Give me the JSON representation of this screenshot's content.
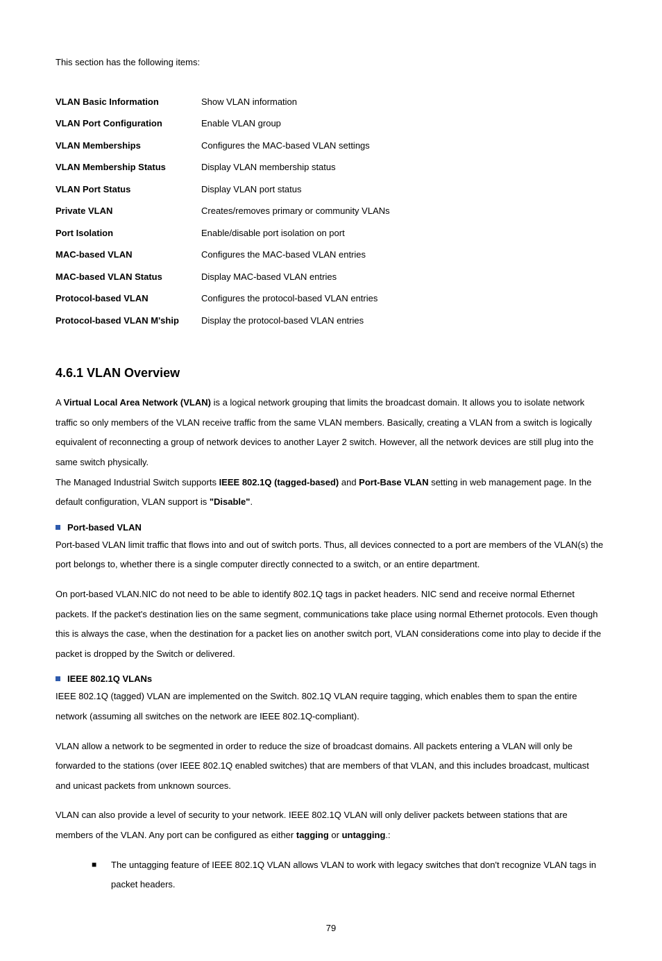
{
  "intro_line": "This section has the following items:",
  "toc": [
    {
      "label": "VLAN Basic Information",
      "desc": "Show VLAN information"
    },
    {
      "label": "VLAN Port Configuration",
      "desc": "Enable VLAN group"
    },
    {
      "label": "VLAN Memberships",
      "desc": "Configures the MAC-based VLAN settings"
    },
    {
      "label": "VLAN Membership Status",
      "desc": "Display VLAN membership status"
    },
    {
      "label": "VLAN Port Status",
      "desc": "Display VLAN port status"
    },
    {
      "label": "Private VLAN",
      "desc": "Creates/removes primary or community VLANs"
    },
    {
      "label": "Port Isolation",
      "desc": "Enable/disable port isolation on port"
    },
    {
      "label": "MAC-based VLAN",
      "desc": "Configures the MAC-based VLAN entries"
    },
    {
      "label": "MAC-based VLAN Status",
      "desc": "Display MAC-based VLAN entries"
    },
    {
      "label": "Protocol-based VLAN",
      "desc": "Configures the protocol-based VLAN entries"
    },
    {
      "label": "Protocol-based VLAN M'ship",
      "desc": "Display the protocol-based VLAN entries"
    }
  ],
  "section": {
    "title": "4.6.1 VLAN Overview",
    "para1_prefix": "A ",
    "para1_bold_vlan": "Virtual Local Area Network (VLAN)",
    "para1_mid": " is a logical network grouping that limits the broadcast domain. It allows you to isolate network traffic so only members of the VLAN receive traffic from the same VLAN members. Basically, creating a VLAN from a switch is logically equivalent of reconnecting a group of network devices to another Layer 2 switch. However, all the network devices are still plug into the same switch physically.",
    "para2_pre": "The Managed Industrial Switch supports ",
    "para2_bold1": "IEEE 802.1Q (tagged-based)",
    "para2_mid1": " and ",
    "para2_bold2": "Port-Base VLAN",
    "para2_mid2": " setting in web management page. In the default configuration, VLAN support is ",
    "para2_bold3": "\"Disable\"",
    "para2_end": ".",
    "sub1_title": "Port-based VLAN",
    "sub1_para1": "Port-based VLAN limit traffic that flows into and out of switch ports. Thus, all devices connected to a port are members of the VLAN(s) the port belongs to, whether there is a single computer directly connected to a switch, or an entire department.",
    "sub1_para2": "On port-based VLAN.NIC do not need to be able to identify 802.1Q tags in packet headers. NIC send and receive normal Ethernet packets. If the packet's destination lies on the same segment, communications take place using normal Ethernet protocols. Even though this is always the case, when the destination for a packet lies on another switch port, VLAN considerations come into play to decide if the packet is dropped by the Switch or delivered.",
    "sub2_title": "IEEE 802.1Q VLANs",
    "sub2_para1": "IEEE 802.1Q (tagged) VLAN are implemented on the Switch. 802.1Q VLAN require tagging, which enables them to span the entire network (assuming all switches on the network are IEEE 802.1Q-compliant).",
    "sub2_para2": "VLAN allow a network to be segmented in order to reduce the size of broadcast domains. All packets entering a VLAN will only be forwarded to the stations (over IEEE 802.1Q enabled switches) that are members of that VLAN, and this includes broadcast, multicast and unicast packets from unknown sources.",
    "sub2_para3_pre": "VLAN can also provide a level of security to your network. IEEE 802.1Q VLAN will only deliver packets between stations that are members of the VLAN. Any port can be configured as either ",
    "sub2_para3_b1": "tagging",
    "sub2_para3_mid": " or ",
    "sub2_para3_b2": "untagging",
    "sub2_para3_end": ".:",
    "bullet1": "The untagging feature of IEEE 802.1Q VLAN allows VLAN to work with legacy switches that don't recognize VLAN tags in packet headers."
  },
  "page_number": "79"
}
